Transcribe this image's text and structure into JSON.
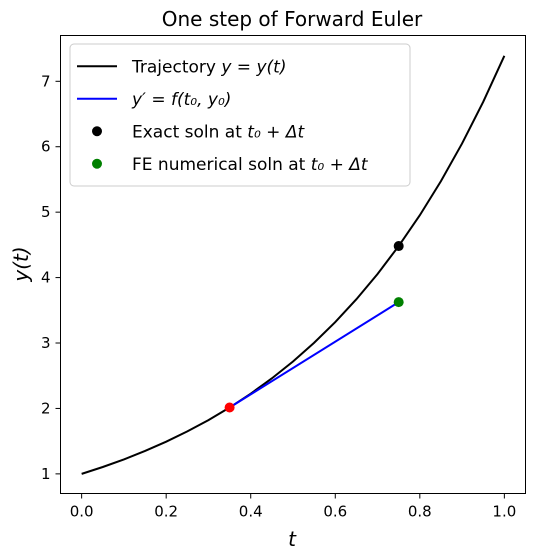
{
  "chart_data": {
    "type": "line",
    "title": "One step of Forward Euler",
    "xlabel": "t",
    "ylabel": "y(t)",
    "xlim": [
      -0.05,
      1.05
    ],
    "ylim": [
      0.7,
      7.7
    ],
    "xticks": [
      0.0,
      0.2,
      0.4,
      0.6,
      0.8,
      1.0
    ],
    "xtick_labels": [
      "0.0",
      "0.2",
      "0.4",
      "0.6",
      "0.8",
      "1.0"
    ],
    "yticks": [
      1,
      2,
      3,
      4,
      5,
      6,
      7
    ],
    "ytick_labels": [
      "1",
      "2",
      "3",
      "4",
      "5",
      "6",
      "7"
    ],
    "grid": false,
    "legend_position": "top-left",
    "trajectory": {
      "name": "Trajectory y = y(t)",
      "color": "#000000",
      "x": [
        0.0,
        0.05,
        0.1,
        0.15,
        0.2,
        0.25,
        0.3,
        0.35,
        0.4,
        0.45,
        0.5,
        0.55,
        0.6,
        0.65,
        0.7,
        0.75,
        0.8,
        0.85,
        0.9,
        0.95,
        1.0
      ],
      "y": [
        1.0,
        1.105,
        1.221,
        1.35,
        1.492,
        1.649,
        1.822,
        2.014,
        2.226,
        2.46,
        2.718,
        3.004,
        3.32,
        3.669,
        4.055,
        4.482,
        4.953,
        5.474,
        6.05,
        6.686,
        7.389
      ]
    },
    "tangent": {
      "name": "y' = f(t0, y0)",
      "color": "#0000ff",
      "x": [
        0.35,
        0.75
      ],
      "y": [
        2.014,
        3.625
      ]
    },
    "points": [
      {
        "name": "Exact soln at t0 + Δt",
        "color": "#000000",
        "x": 0.75,
        "y": 4.482,
        "in_legend": true
      },
      {
        "name": "FE numerical soln at t0 + Δt",
        "color": "#008000",
        "x": 0.75,
        "y": 3.625,
        "in_legend": true
      },
      {
        "name": "",
        "color": "#ff0000",
        "x": 0.35,
        "y": 2.014,
        "in_legend": false
      }
    ],
    "legend": [
      {
        "kind": "line",
        "color": "#000000",
        "prefix": "Trajectory ",
        "math": "y = y(t)"
      },
      {
        "kind": "line",
        "color": "#0000ff",
        "prefix": "",
        "math": "y′ = f(t₀, y₀)"
      },
      {
        "kind": "marker",
        "color": "#000000",
        "prefix": "Exact soln at ",
        "math": "t₀ + Δt"
      },
      {
        "kind": "marker",
        "color": "#008000",
        "prefix": "FE numerical soln at ",
        "math": "t₀ + Δt"
      }
    ]
  }
}
